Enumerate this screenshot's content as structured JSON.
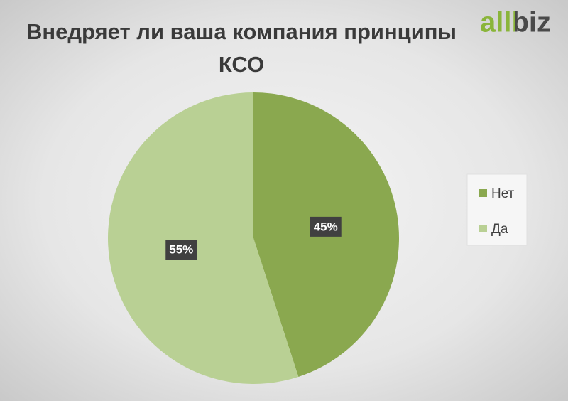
{
  "logo": "allbiz",
  "chart_data": {
    "type": "pie",
    "title": "Внедряет ли ваша компания принципы КСО",
    "categories": [
      "Нет",
      "Да"
    ],
    "values": [
      45,
      55
    ],
    "value_labels": [
      "45%",
      "55%"
    ],
    "colors": [
      "#8aa84f",
      "#b9d094"
    ],
    "legend": "right"
  }
}
